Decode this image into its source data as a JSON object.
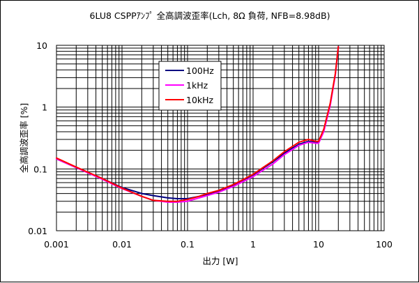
{
  "chart_data": {
    "type": "line",
    "title": "6LU8 CSPPｱﾝﾌﾟ 全高調波歪率(Lch, 8Ω 負荷, NFB=8.98dB)",
    "xlabel": "出力 [W]",
    "ylabel": "全高調波歪率 [%]",
    "x_scale": "log",
    "y_scale": "log",
    "xlim": [
      0.001,
      100
    ],
    "ylim": [
      0.01,
      10
    ],
    "x_ticks": [
      {
        "value": 0.001,
        "label": "0.001"
      },
      {
        "value": 0.01,
        "label": "0.01"
      },
      {
        "value": 0.1,
        "label": "0.1"
      },
      {
        "value": 1,
        "label": "1"
      },
      {
        "value": 10,
        "label": "10"
      },
      {
        "value": 100,
        "label": "100"
      }
    ],
    "y_ticks": [
      {
        "value": 0.01,
        "label": "0.01"
      },
      {
        "value": 0.1,
        "label": "0.1"
      },
      {
        "value": 1,
        "label": "1"
      },
      {
        "value": 10,
        "label": "10"
      }
    ],
    "grid": true,
    "legend_position": "upper-center",
    "series": [
      {
        "name": "100Hz",
        "color": "#000080",
        "x": [
          0.001,
          0.002,
          0.005,
          0.01,
          0.02,
          0.03,
          0.05,
          0.07,
          0.1,
          0.15,
          0.2,
          0.3,
          0.5,
          0.7,
          1,
          2,
          3,
          5,
          7,
          9,
          10,
          12,
          15,
          18,
          20
        ],
        "y": [
          0.145,
          0.105,
          0.07,
          0.05,
          0.04,
          0.037,
          0.034,
          0.033,
          0.033,
          0.036,
          0.039,
          0.043,
          0.055,
          0.066,
          0.08,
          0.13,
          0.18,
          0.25,
          0.28,
          0.27,
          0.27,
          0.42,
          1.1,
          3.4,
          9.5
        ]
      },
      {
        "name": "1kHz",
        "color": "#ff00ff",
        "x": [
          0.001,
          0.002,
          0.005,
          0.01,
          0.02,
          0.03,
          0.05,
          0.07,
          0.1,
          0.15,
          0.2,
          0.3,
          0.5,
          0.7,
          1,
          2,
          3,
          5,
          7,
          9,
          10,
          12,
          15,
          18,
          20
        ],
        "y": [
          0.145,
          0.105,
          0.068,
          0.048,
          0.036,
          0.031,
          0.029,
          0.029,
          0.03,
          0.034,
          0.037,
          0.042,
          0.052,
          0.062,
          0.075,
          0.12,
          0.17,
          0.24,
          0.27,
          0.26,
          0.26,
          0.4,
          1.05,
          3.3,
          9.5
        ]
      },
      {
        "name": "10kHz",
        "color": "#ff0000",
        "x": [
          0.001,
          0.002,
          0.005,
          0.01,
          0.02,
          0.03,
          0.05,
          0.07,
          0.1,
          0.15,
          0.2,
          0.3,
          0.5,
          0.7,
          1,
          2,
          3,
          5,
          7,
          9,
          10,
          12,
          15,
          18,
          20
        ],
        "y": [
          0.15,
          0.107,
          0.07,
          0.049,
          0.036,
          0.031,
          0.03,
          0.03,
          0.032,
          0.036,
          0.04,
          0.045,
          0.056,
          0.067,
          0.082,
          0.135,
          0.19,
          0.27,
          0.3,
          0.28,
          0.28,
          0.44,
          1.15,
          3.5,
          9.5
        ]
      }
    ]
  }
}
